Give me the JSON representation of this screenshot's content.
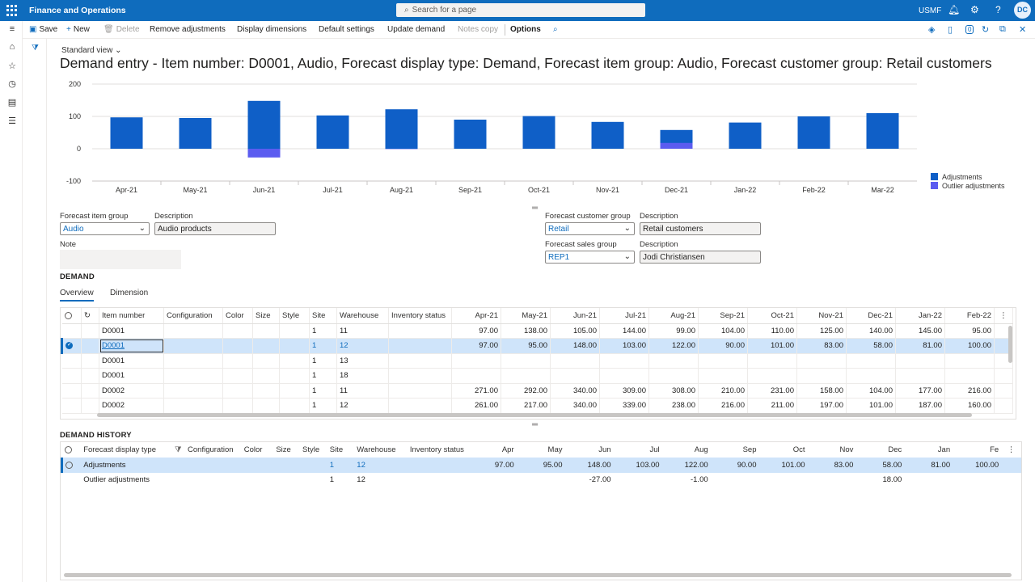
{
  "topbar": {
    "app_title": "Finance and Operations",
    "search_placeholder": "Search for a page",
    "company": "USMF",
    "avatar_initials": "DC"
  },
  "actions": {
    "save": "Save",
    "new": "New",
    "delete": "Delete",
    "remove_adjustments": "Remove adjustments",
    "display_dimensions": "Display dimensions",
    "default_settings": "Default settings",
    "update_demand": "Update demand",
    "notes_copy": "Notes copy",
    "options": "Options",
    "badge_count": "0"
  },
  "header": {
    "view_name": "Standard view",
    "title": "Demand entry - Item number: D0001, Audio, Forecast display type: Demand, Forecast item group: Audio, Forecast customer group: Retail customers"
  },
  "chart_data": {
    "type": "bar",
    "categories": [
      "Apr-21",
      "May-21",
      "Jun-21",
      "Jul-21",
      "Aug-21",
      "Sep-21",
      "Oct-21",
      "Nov-21",
      "Dec-21",
      "Jan-22",
      "Feb-22",
      "Mar-22"
    ],
    "series": [
      {
        "name": "Adjustments",
        "color": "#0f5fc7",
        "values": [
          97,
          95,
          148,
          103,
          122,
          90,
          101,
          83,
          58,
          81,
          100,
          110
        ]
      },
      {
        "name": "Outlier adjustments",
        "color": "#5b5cf0",
        "values": [
          0,
          0,
          -27,
          0,
          -1,
          0,
          0,
          0,
          18,
          0,
          0,
          0
        ]
      }
    ],
    "ylim": [
      -100,
      200
    ],
    "yticks": [
      "200",
      "100",
      "0",
      "-100"
    ],
    "legend_position": "right",
    "grid": true
  },
  "fields": {
    "forecast_item_group_label": "Forecast item group",
    "forecast_item_group_value": "Audio",
    "description_label": "Description",
    "item_group_description": "Audio products",
    "note_label": "Note",
    "forecast_customer_group_label": "Forecast customer group",
    "forecast_customer_group_value": "Retail",
    "customer_group_description": "Retail customers",
    "forecast_sales_group_label": "Forecast sales group",
    "forecast_sales_group_value": "REP1",
    "sales_group_description": "Jodi Christiansen"
  },
  "demand": {
    "section_title": "DEMAND",
    "tabs": [
      "Overview",
      "Dimension"
    ],
    "columns": [
      "Item number",
      "Configuration",
      "Color",
      "Size",
      "Style",
      "Site",
      "Warehouse",
      "Inventory status",
      "Apr-21",
      "May-21",
      "Jun-21",
      "Jul-21",
      "Aug-21",
      "Sep-21",
      "Oct-21",
      "Nov-21",
      "Dec-21",
      "Jan-22",
      "Feb-22"
    ],
    "rows": [
      [
        "D0001",
        "",
        "",
        "",
        "",
        "1",
        "11",
        "",
        "97.00",
        "138.00",
        "105.00",
        "144.00",
        "99.00",
        "104.00",
        "110.00",
        "125.00",
        "140.00",
        "145.00",
        "95.00"
      ],
      [
        "D0001",
        "",
        "",
        "",
        "",
        "1",
        "12",
        "",
        "97.00",
        "95.00",
        "148.00",
        "103.00",
        "122.00",
        "90.00",
        "101.00",
        "83.00",
        "58.00",
        "81.00",
        "100.00"
      ],
      [
        "D0001",
        "",
        "",
        "",
        "",
        "1",
        "13",
        "",
        "",
        "",
        "",
        "",
        "",
        "",
        "",
        "",
        "",
        "",
        ""
      ],
      [
        "D0001",
        "",
        "",
        "",
        "",
        "1",
        "18",
        "",
        "",
        "",
        "",
        "",
        "",
        "",
        "",
        "",
        "",
        "",
        ""
      ],
      [
        "D0002",
        "",
        "",
        "",
        "",
        "1",
        "11",
        "",
        "271.00",
        "292.00",
        "340.00",
        "309.00",
        "308.00",
        "210.00",
        "231.00",
        "158.00",
        "104.00",
        "177.00",
        "216.00"
      ],
      [
        "D0002",
        "",
        "",
        "",
        "",
        "1",
        "12",
        "",
        "261.00",
        "217.00",
        "340.00",
        "339.00",
        "238.00",
        "216.00",
        "211.00",
        "197.00",
        "101.00",
        "187.00",
        "160.00"
      ]
    ]
  },
  "history": {
    "section_title": "DEMAND HISTORY",
    "columns": [
      "Forecast display type",
      "Configuration",
      "Color",
      "Size",
      "Style",
      "Site",
      "Warehouse",
      "Inventory status",
      "Apr",
      "May",
      "Jun",
      "Jul",
      "Aug",
      "Sep",
      "Oct",
      "Nov",
      "Dec",
      "Jan",
      "Fe"
    ],
    "rows": [
      [
        "Adjustments",
        "",
        "",
        "",
        "",
        "1",
        "12",
        "",
        "97.00",
        "95.00",
        "148.00",
        "103.00",
        "122.00",
        "90.00",
        "101.00",
        "83.00",
        "58.00",
        "81.00",
        "100.00"
      ],
      [
        "Outlier adjustments",
        "",
        "",
        "",
        "",
        "1",
        "12",
        "",
        "",
        "",
        "-27.00",
        "",
        "-1.00",
        "",
        "",
        "",
        "18.00",
        "",
        ""
      ]
    ]
  }
}
